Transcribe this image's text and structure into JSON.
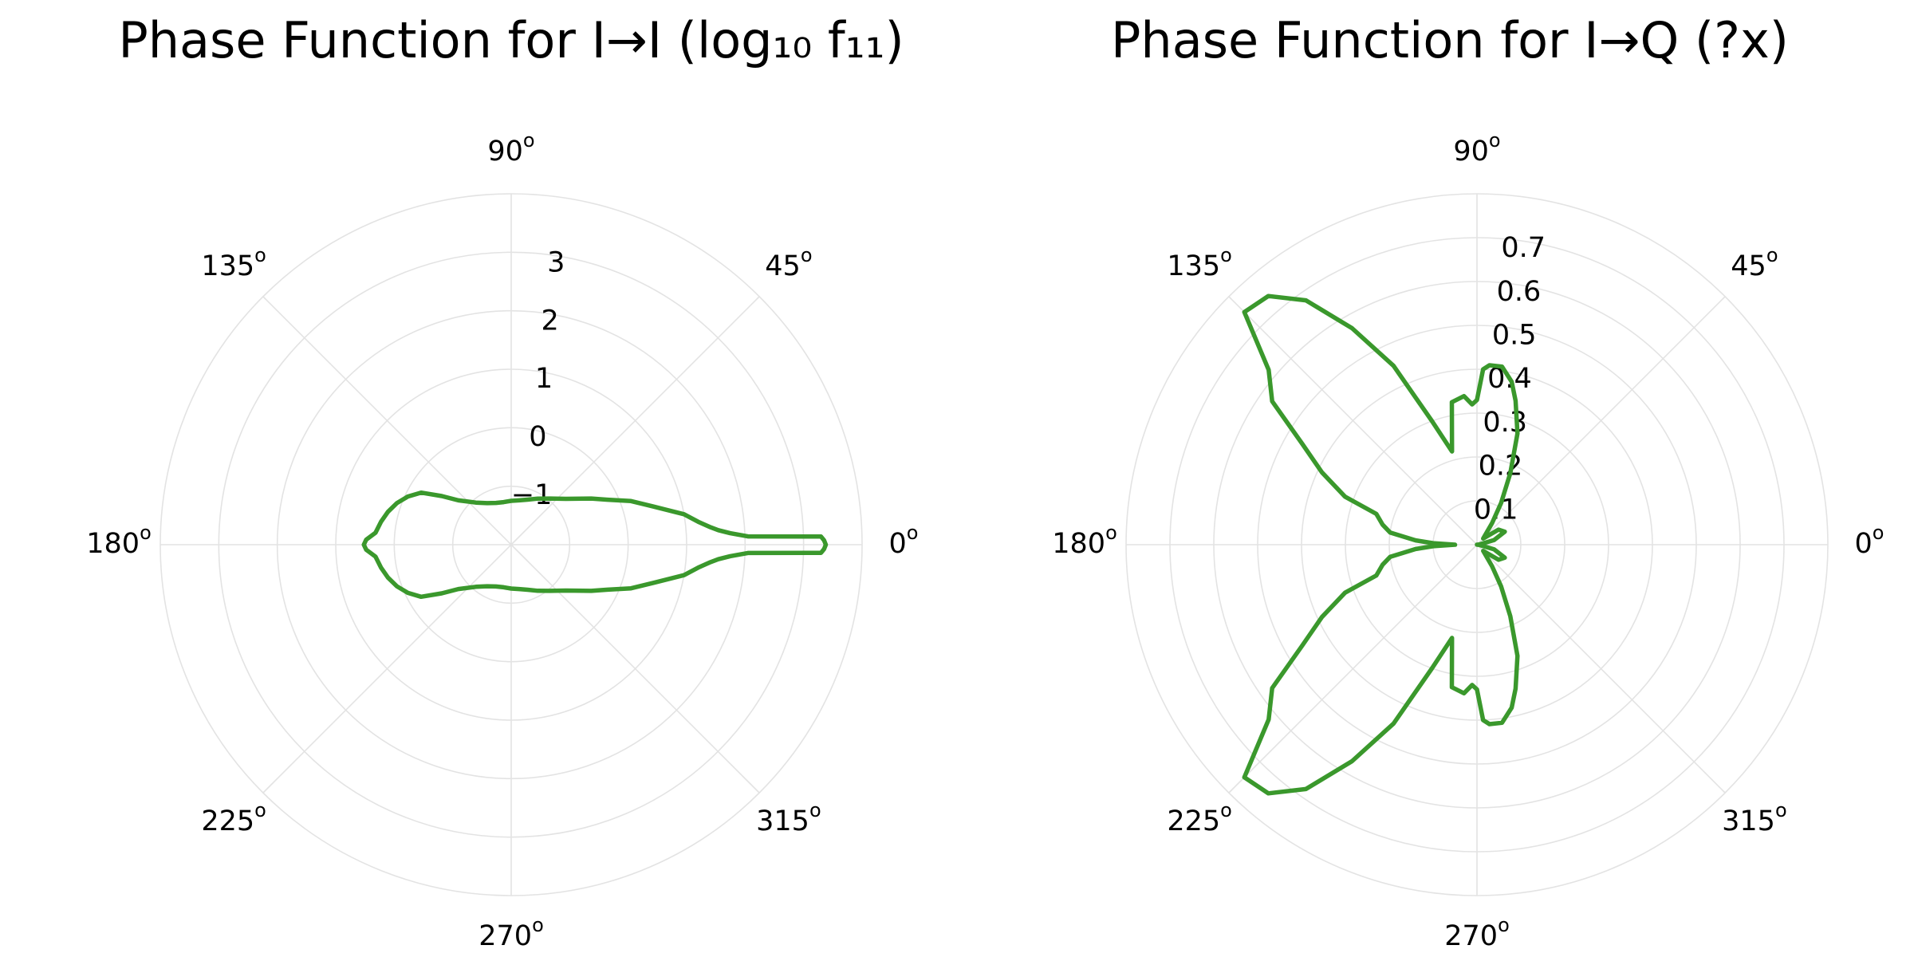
{
  "chart_data": [
    {
      "type": "polar-line",
      "title": "Phase Function for I→I (log₁₀ f₁₁)",
      "angle_unit": "degrees",
      "angle_ticks": [
        "0",
        "45",
        "90",
        "135",
        "180",
        "225",
        "270",
        "315"
      ],
      "degree_marker": "o",
      "rlim": [
        -2,
        4
      ],
      "r_ticks": [
        "−1",
        "0",
        "1",
        "2",
        "3"
      ],
      "r_tick_values": [
        -1,
        0,
        1,
        2,
        3
      ],
      "grid": true,
      "color": "#3a982c",
      "series": [
        {
          "angle_deg": [
            0,
            0.8,
            1.5,
            2,
            3,
            4,
            5,
            7,
            10,
            15,
            20,
            25,
            30,
            40,
            50,
            60,
            70,
            80,
            90,
            100,
            110,
            120,
            130,
            140,
            145,
            150,
            155,
            160,
            165,
            170,
            175,
            178,
            180
          ],
          "r": [
            3.38,
            3.35,
            3.3,
            2.05,
            1.75,
            1.55,
            1.42,
            1.22,
            1.0,
            0.52,
            0.18,
            -0.18,
            -0.42,
            -0.78,
            -0.97,
            -1.09,
            -1.18,
            -1.23,
            -1.25,
            -1.26,
            -1.24,
            -1.18,
            -1.06,
            -0.82,
            -0.55,
            -0.22,
            -0.05,
            0.08,
            0.18,
            0.26,
            0.33,
            0.48,
            0.52
          ],
          "mirror": true
        }
      ]
    },
    {
      "type": "polar-line",
      "title": "Phase Function for I→Q (?x)",
      "angle_unit": "degrees",
      "angle_ticks": [
        "0",
        "45",
        "90",
        "135",
        "180",
        "225",
        "270",
        "315"
      ],
      "degree_marker": "o",
      "rlim": [
        0,
        0.8
      ],
      "r_ticks": [
        "0.1",
        "0.2",
        "0.3",
        "0.4",
        "0.5",
        "0.6",
        "0.7"
      ],
      "r_tick_values": [
        0.1,
        0.2,
        0.3,
        0.4,
        0.5,
        0.6,
        0.7
      ],
      "grid": true,
      "color": "#3a982c",
      "series": [
        {
          "angle_deg": [
            0,
            5,
            15,
            25,
            35,
            45,
            55,
            60,
            65,
            70,
            75,
            78,
            82,
            86,
            88,
            90,
            92,
            95,
            100,
            105,
            110,
            115,
            120,
            125,
            130,
            135,
            140,
            145,
            150,
            155,
            160,
            163,
            168,
            172,
            176,
            178,
            180
          ],
          "r": [
            0,
            0.005,
            0.04,
            0.07,
            0.06,
            0.02,
            0.06,
            0.11,
            0.18,
            0.27,
            0.34,
            0.38,
            0.41,
            0.41,
            0.4,
            0.33,
            0.32,
            0.34,
            0.33,
            0.22,
            0.3,
            0.45,
            0.57,
            0.68,
            0.74,
            0.75,
            0.62,
            0.57,
            0.46,
            0.39,
            0.32,
            0.24,
            0.22,
            0.2,
            0.14,
            0.1,
            0.05
          ],
          "mirror": true
        }
      ]
    }
  ]
}
